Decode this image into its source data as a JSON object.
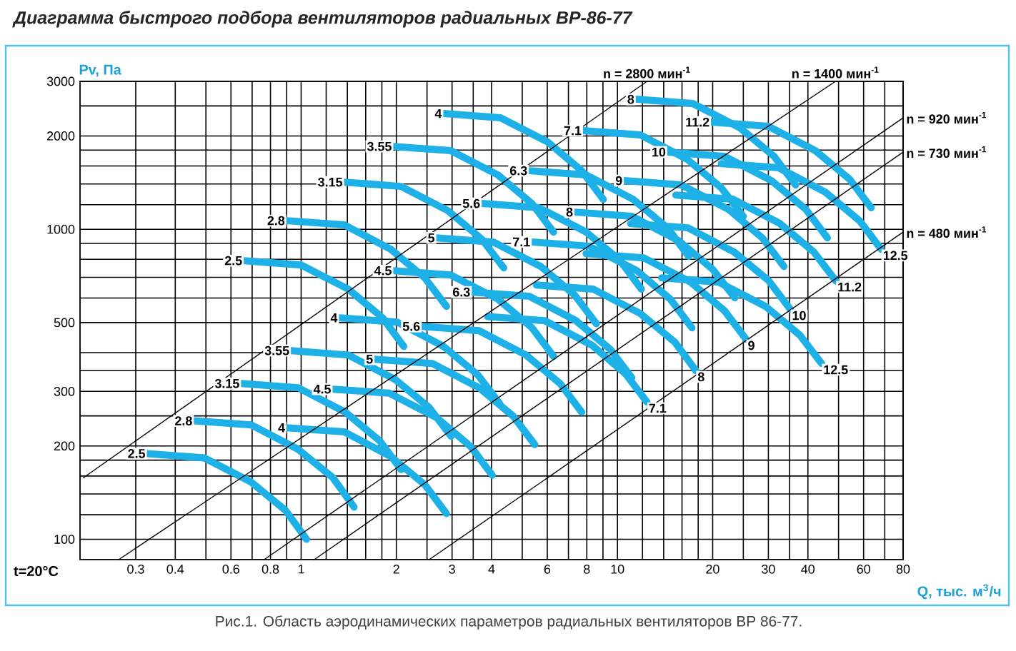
{
  "chart_data": {
    "type": "line",
    "title": "Диаграмма быстрого подбора вентиляторов радиальных ВР-86-77",
    "xlabel": "Q, тыс. м$^{3}$/ч",
    "ylabel": "Pv, Па",
    "annotations": [
      "t=20°C",
      "Рис.1. Область аэродинамических параметров радиальных вентиляторов  ВР 86-77."
    ],
    "log": "xy",
    "grid": true,
    "xlim": [
      0.2,
      80
    ],
    "ylim": [
      86,
      3000
    ],
    "xticks": [
      0.3,
      0.4,
      {
        "value": 0.5,
        "label": null
      },
      0.6,
      {
        "value": 0.7,
        "label": null
      },
      0.8,
      {
        "value": 0.9,
        "label": null
      },
      1,
      {
        "value": 1.2,
        "label": null
      },
      {
        "value": 1.4,
        "label": null
      },
      {
        "value": 1.6,
        "label": null
      },
      {
        "value": 1.8,
        "label": null
      },
      2,
      {
        "value": 2.5,
        "label": null
      },
      3,
      {
        "value": 3.5,
        "label": null
      },
      4,
      {
        "value": 5,
        "label": null
      },
      6,
      {
        "value": 7,
        "label": null
      },
      8,
      {
        "value": 9,
        "label": null
      },
      10,
      {
        "value": 12,
        "label": null
      },
      {
        "value": 14,
        "label": null
      },
      {
        "value": 16,
        "label": null
      },
      {
        "value": 18,
        "label": null
      },
      20,
      {
        "value": 25,
        "label": null
      },
      30,
      {
        "value": 35,
        "label": null
      },
      40,
      {
        "value": 50,
        "label": null
      },
      60,
      {
        "value": 70,
        "label": null
      },
      80
    ],
    "yticks": [
      100,
      {
        "value": 120,
        "label": null
      },
      {
        "value": 140,
        "label": null
      },
      {
        "value": 160,
        "label": null
      },
      {
        "value": 180,
        "label": null
      },
      200,
      {
        "value": 250,
        "label": null
      },
      300,
      {
        "value": 350,
        "label": null
      },
      {
        "value": 400,
        "label": null
      },
      500,
      {
        "value": 600,
        "label": null
      },
      {
        "value": 700,
        "label": null
      },
      {
        "value": 800,
        "label": null
      },
      {
        "value": 900,
        "label": null
      },
      1000,
      {
        "value": 1200,
        "label": null
      },
      {
        "value": 1400,
        "label": null
      },
      {
        "value": 1600,
        "label": null
      },
      {
        "value": 1800,
        "label": null
      },
      2000,
      {
        "value": 2500,
        "label": null
      },
      3000
    ],
    "series": [
      {
        "name": "2.5",
        "color": "#1eb1e7",
        "x": [
          0.66,
          1.0,
          1.41,
          1.81,
          2.11
        ],
        "values": [
          792,
          767,
          641,
          518,
          419
        ]
      },
      {
        "name": "2.8",
        "color": "#1eb1e7",
        "x": [
          0.9,
          1.37,
          1.92,
          2.46,
          2.88
        ],
        "values": [
          1066,
          1033,
          862,
          697,
          564
        ]
      },
      {
        "name": "3.15",
        "color": "#1eb1e7",
        "x": [
          1.37,
          2.07,
          2.91,
          3.73,
          4.37
        ],
        "values": [
          1419,
          1375,
          1148,
          928,
          751
        ]
      },
      {
        "name": "3.55",
        "color": "#1eb1e7",
        "x": [
          1.96,
          2.97,
          4.19,
          5.37,
          6.28
        ],
        "values": [
          1850,
          1793,
          1497,
          1210,
          979
        ]
      },
      {
        "name": "4",
        "color": "#1eb1e7",
        "x": [
          2.82,
          4.27,
          6.02,
          7.71,
          9.02
        ],
        "values": [
          2362,
          2289,
          1911,
          1545,
          1249
        ]
      },
      {
        "name": "2.5",
        "color": "#1eb1e7",
        "x": [
          0.326,
          0.494,
          0.695,
          0.892,
          1.04
        ],
        "values": [
          189,
          183,
          153,
          124,
          100
        ]
      },
      {
        "name": "2.8",
        "color": "#1eb1e7",
        "x": [
          0.459,
          0.695,
          0.979,
          1.26,
          1.47
        ],
        "values": [
          241,
          234,
          195,
          158,
          127
        ]
      },
      {
        "name": "3.15",
        "color": "#1eb1e7",
        "x": [
          0.647,
          0.98,
          1.38,
          1.77,
          2.07
        ],
        "values": [
          318,
          308,
          257,
          208,
          168
        ]
      },
      {
        "name": "3.55",
        "color": "#1eb1e7",
        "x": [
          0.93,
          1.41,
          1.98,
          2.54,
          2.98
        ],
        "values": [
          406,
          393,
          328,
          266,
          215
        ]
      },
      {
        "name": "4",
        "color": "#1eb1e7",
        "x": [
          1.32,
          2.01,
          2.82,
          3.62,
          4.24
        ],
        "values": [
          518,
          502,
          419,
          339,
          274
        ]
      },
      {
        "name": "4.5",
        "color": "#1eb1e7",
        "x": [
          1.96,
          2.97,
          4.19,
          5.37,
          6.28
        ],
        "values": [
          735,
          712,
          595,
          481,
          389
        ]
      },
      {
        "name": "5",
        "color": "#1eb1e7",
        "x": [
          2.68,
          4.06,
          5.72,
          7.33,
          8.58
        ],
        "values": [
          938,
          909,
          759,
          613,
          496
        ]
      },
      {
        "name": "5.6",
        "color": "#1eb1e7",
        "x": [
          3.73,
          5.65,
          7.96,
          10.2,
          11.9
        ],
        "values": [
          1211,
          1173,
          980,
          792,
          641
        ]
      },
      {
        "name": "6.3",
        "color": "#1eb1e7",
        "x": [
          5.26,
          7.97,
          11.2,
          14.4,
          16.8
        ],
        "values": [
          1545,
          1497,
          1250,
          1010,
          817
        ]
      },
      {
        "name": "7.1",
        "color": "#1eb1e7",
        "x": [
          7.8,
          11.8,
          16.6,
          21.3,
          25.0
        ],
        "values": [
          2080,
          2016,
          1683,
          1360,
          1100
        ]
      },
      {
        "name": "8",
        "color": "#1eb1e7",
        "x": [
          11.45,
          17.3,
          24.4,
          31.3,
          36.6
        ],
        "values": [
          2626,
          2545,
          2124,
          1717,
          1389
        ]
      },
      {
        "name": "4",
        "color": "#1eb1e7",
        "x": [
          0.901,
          1.37,
          1.92,
          2.46,
          2.88
        ],
        "values": [
          229,
          222,
          185,
          150,
          121
        ]
      },
      {
        "name": "4.5",
        "color": "#1eb1e7",
        "x": [
          1.26,
          1.9,
          2.68,
          3.44,
          4.02
        ],
        "values": [
          305,
          296,
          247,
          199,
          161
        ]
      },
      {
        "name": "5",
        "color": "#1eb1e7",
        "x": [
          1.71,
          2.6,
          3.66,
          4.69,
          5.48
        ],
        "values": [
          381,
          369,
          308,
          249,
          202
        ]
      },
      {
        "name": "5.6",
        "color": "#1eb1e7",
        "x": [
          2.41,
          3.65,
          5.14,
          6.59,
          7.71
        ],
        "values": [
          486,
          471,
          393,
          318,
          257
        ]
      },
      {
        "name": "6.3",
        "color": "#1eb1e7",
        "x": [
          3.47,
          5.26,
          7.4,
          9.49,
          11.1
        ],
        "values": [
          627,
          608,
          507,
          410,
          332
        ]
      },
      {
        "name": "7.1",
        "color": "#1eb1e7",
        "x": [
          5.37,
          8.14,
          11.5,
          14.7,
          17.2
        ],
        "values": [
          910,
          882,
          736,
          595,
          481
        ]
      },
      {
        "name": "8",
        "color": "#1eb1e7",
        "x": [
          7.33,
          11.1,
          15.6,
          20.0,
          23.5
        ],
        "values": [
          1136,
          1101,
          919,
          743,
          601
        ]
      },
      {
        "name": "9",
        "color": "#1eb1e7",
        "x": [
          10.5,
          15.9,
          22.4,
          28.7,
          33.6
        ],
        "values": [
          1435,
          1391,
          1161,
          938,
          759
        ]
      },
      {
        "name": "10",
        "color": "#1eb1e7",
        "x": [
          14.4,
          21.8,
          30.7,
          39.4,
          46.1
        ],
        "values": [
          1774,
          1719,
          1435,
          1160,
          938
        ]
      },
      {
        "name": "11.2",
        "color": "#1eb1e7",
        "x": [
          19.8,
          30.0,
          42.2,
          54.2,
          63.4
        ],
        "values": [
          2217,
          2148,
          1794,
          1450,
          1173
        ]
      },
      {
        "name": "7.1",
        "color": "#1eb1e7",
        "x": [
          3.89,
          5.89,
          8.3,
          10.6,
          12.4
        ],
        "values": [
          523,
          507,
          423,
          342,
          277
        ]
      },
      {
        "name": "8",
        "color": "#1eb1e7",
        "x": [
          5.54,
          8.39,
          11.8,
          15.2,
          17.7
        ],
        "values": [
          661,
          641,
          535,
          432,
          350
        ]
      },
      {
        "name": "9",
        "color": "#1eb1e7",
        "x": [
          7.96,
          12.1,
          17.0,
          21.8,
          25.5
        ],
        "values": [
          835,
          809,
          676,
          546,
          442
        ]
      },
      {
        "name": "10",
        "color": "#1eb1e7",
        "x": [
          11.0,
          16.7,
          23.4,
          30.1,
          35.2
        ],
        "values": [
          1043,
          1011,
          844,
          682,
          552
        ]
      },
      {
        "name": "11.2",
        "color": "#1eb1e7",
        "x": [
          15.3,
          23.2,
          32.6,
          41.8,
          49.0
        ],
        "values": [
          1290,
          1250,
          1044,
          844,
          682
        ]
      },
      {
        "name": "12.5",
        "color": "#1eb1e7",
        "x": [
          21.3,
          32.3,
          45.4,
          58.3,
          68.2
        ],
        "values": [
          1629,
          1579,
          1318,
          1065,
          862
        ]
      },
      {
        "name": "12.5",
        "color": "#1eb1e7",
        "x": [
          13.8,
          20.9,
          29.4,
          37.7,
          44.2
        ],
        "values": [
          697,
          675,
          564,
          456,
          369
        ]
      },
      {
        "name": "n = 2800 мин$^{-1}$",
        "color": "#000000",
        "x": [
          0.205,
          12.4
        ],
        "values": [
          158,
          3000
        ]
      },
      {
        "name": "n = 1400 мин$^{-1}$",
        "color": "#000000",
        "x": [
          0.265,
          48.9
        ],
        "values": [
          86,
          3000
        ]
      },
      {
        "name": "n = 920 мин$^{-1}$",
        "color": "#000000",
        "x": [
          0.764,
          80
        ],
        "values": [
          86,
          2288
        ]
      },
      {
        "name": "n = 730 мин$^{-1}$",
        "color": "#000000",
        "x": [
          1.1,
          80
        ],
        "values": [
          86,
          1774
        ]
      },
      {
        "name": "n = 480 мин$^{-1}$",
        "color": "#000000",
        "x": [
          2.54,
          80
        ],
        "values": [
          86,
          979
        ]
      }
    ]
  }
}
